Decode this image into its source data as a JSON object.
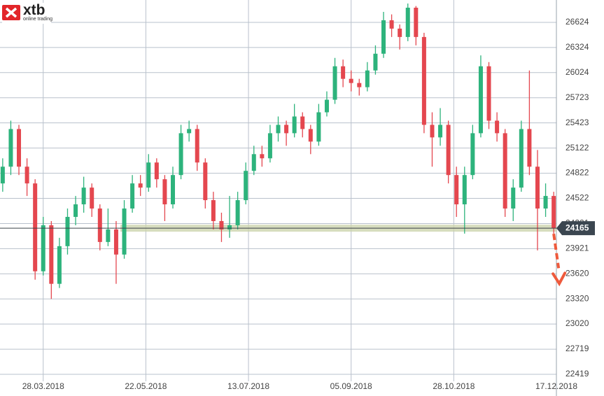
{
  "logo": {
    "name": "xtb",
    "tagline": "online trading"
  },
  "chart_data": {
    "type": "candlestick",
    "up_color": "#2db37c",
    "down_color": "#e4474f",
    "grid": true,
    "current_price": 24165,
    "xlim": [
      0,
      206
    ],
    "ylim": [
      22335,
      26892
    ],
    "xticks": [
      {
        "value": 16,
        "label": "28.03.2018"
      },
      {
        "value": 54,
        "label": "22.05.2018"
      },
      {
        "value": 92,
        "label": "13.07.2018"
      },
      {
        "value": 130,
        "label": "05.09.2018"
      },
      {
        "value": 168,
        "label": "28.10.2018"
      },
      {
        "value": 206,
        "label": "17.12.2018"
      }
    ],
    "yticks": [
      26624,
      26324,
      26024,
      25723,
      25423,
      25122,
      24822,
      24522,
      24221,
      23921,
      23620,
      23320,
      23020,
      22719,
      22419
    ],
    "x": [
      1,
      4,
      7,
      10,
      13,
      16,
      19,
      22,
      25,
      28,
      31,
      34,
      37,
      40,
      43,
      46,
      49,
      52,
      55,
      58,
      61,
      64,
      67,
      70,
      73,
      76,
      79,
      82,
      85,
      88,
      91,
      94,
      97,
      100,
      103,
      106,
      109,
      112,
      115,
      118,
      121,
      124,
      127,
      130,
      133,
      136,
      139,
      142,
      145,
      148,
      151,
      154,
      157,
      160,
      163,
      166,
      169,
      172,
      175,
      178,
      181,
      184,
      187,
      190,
      193,
      196,
      199,
      202,
      205
    ],
    "open": [
      24700,
      24900,
      25350,
      24900,
      24700,
      23650,
      24200,
      23500,
      23950,
      24300,
      24450,
      24650,
      24400,
      24000,
      24150,
      23850,
      24400,
      24700,
      24650,
      24950,
      24750,
      24450,
      24800,
      25300,
      25350,
      24950,
      24500,
      24250,
      24150,
      24200,
      24500,
      24850,
      25050,
      25000,
      25300,
      25400,
      25300,
      25500,
      25350,
      25200,
      25550,
      25700,
      26100,
      25950,
      25900,
      25850,
      26050,
      26250,
      26650,
      26550,
      26450,
      26800,
      26450,
      25400,
      25250,
      25400,
      24800,
      24450,
      24800,
      25300,
      26100,
      25450,
      25300,
      24400,
      24650,
      25350,
      24900,
      24400,
      24550
    ],
    "high": [
      25000,
      25450,
      25400,
      25000,
      24750,
      24300,
      24250,
      24050,
      24400,
      24550,
      24780,
      24700,
      24450,
      24400,
      24250,
      24500,
      24800,
      24800,
      25050,
      25000,
      24800,
      24900,
      25400,
      25450,
      25400,
      25000,
      24600,
      24350,
      24550,
      24600,
      24950,
      25150,
      25150,
      25400,
      25500,
      25450,
      25650,
      25550,
      25400,
      25650,
      25800,
      26200,
      26180,
      26050,
      25950,
      26150,
      26350,
      26750,
      26720,
      26600,
      26850,
      26820,
      26500,
      25550,
      25600,
      25450,
      24900,
      24900,
      25400,
      26230,
      26150,
      25550,
      25350,
      24750,
      25450,
      26050,
      25100,
      24700,
      24600
    ],
    "low": [
      24600,
      24800,
      24800,
      24550,
      23550,
      23600,
      23320,
      23450,
      23850,
      24200,
      24350,
      24300,
      23900,
      23950,
      23500,
      23800,
      24350,
      24550,
      24600,
      24650,
      24250,
      24400,
      24750,
      25200,
      24850,
      24400,
      24150,
      24000,
      24050,
      24150,
      24450,
      24800,
      24900,
      24950,
      25200,
      25150,
      25250,
      25250,
      25050,
      25150,
      25500,
      25650,
      25850,
      25800,
      25750,
      25800,
      26000,
      26200,
      26450,
      26300,
      26400,
      26350,
      25300,
      24900,
      25150,
      24700,
      24300,
      24100,
      24750,
      25250,
      25350,
      25200,
      24300,
      24250,
      24600,
      24800,
      23900,
      24300,
      24100
    ],
    "close": [
      24900,
      25350,
      24900,
      24700,
      23650,
      24200,
      23500,
      23950,
      24300,
      24450,
      24650,
      24400,
      24000,
      24150,
      23850,
      24400,
      24700,
      24650,
      24950,
      24750,
      24450,
      24800,
      25300,
      25350,
      24950,
      24500,
      24250,
      24150,
      24200,
      24500,
      24850,
      25050,
      25000,
      25300,
      25400,
      25300,
      25500,
      25350,
      25200,
      25550,
      25700,
      26100,
      25950,
      25900,
      25850,
      26050,
      26250,
      26650,
      26550,
      26450,
      26800,
      26450,
      25400,
      25250,
      25400,
      24800,
      24450,
      24800,
      25300,
      26100,
      25450,
      25300,
      24400,
      24650,
      25350,
      24900,
      24400,
      24550,
      24165
    ]
  }
}
